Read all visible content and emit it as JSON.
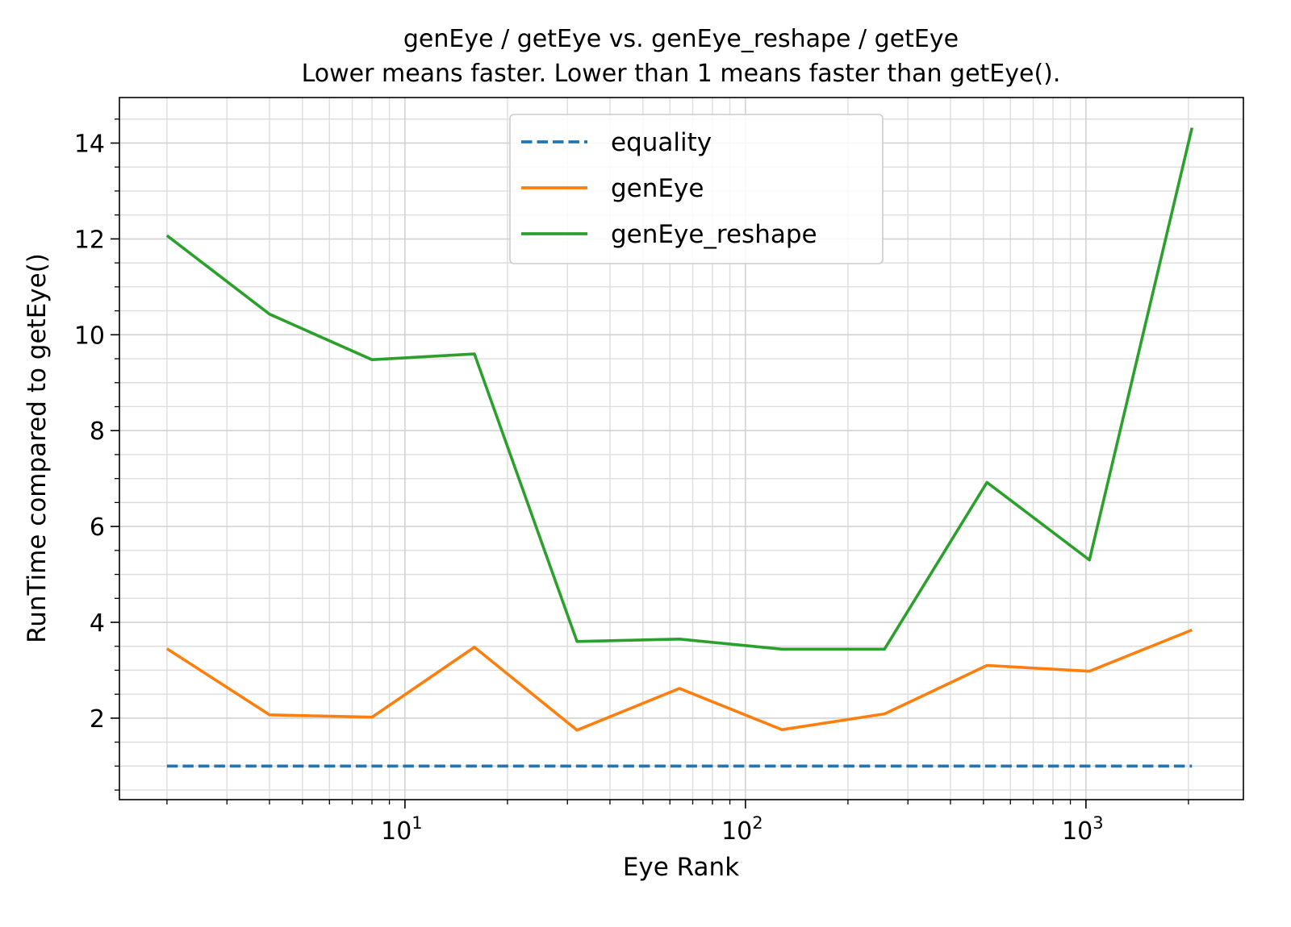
{
  "chart_data": {
    "type": "line",
    "title": "genEye / getEye vs. genEye_reshape / getEye",
    "subtitle": "Lower means faster. Lower than 1 means faster than getEye().",
    "xlabel": "Eye Rank",
    "ylabel": "RunTime compared to getEye()",
    "xscale": "log",
    "xlim": [
      1.45,
      2900
    ],
    "ylim": [
      0.3,
      14.95
    ],
    "x": [
      2,
      4,
      8,
      16,
      32,
      64,
      128,
      256,
      512,
      1024,
      2048
    ],
    "x_ticks": [
      {
        "value": 10,
        "base": "10",
        "exp": "1"
      },
      {
        "value": 100,
        "base": "10",
        "exp": "2"
      },
      {
        "value": 1000,
        "base": "10",
        "exp": "3"
      }
    ],
    "y_ticks": [
      {
        "value": 2,
        "label": "2"
      },
      {
        "value": 4,
        "label": "4"
      },
      {
        "value": 6,
        "label": "6"
      },
      {
        "value": 8,
        "label": "8"
      },
      {
        "value": 10,
        "label": "10"
      },
      {
        "value": 12,
        "label": "12"
      },
      {
        "value": 14,
        "label": "14"
      }
    ],
    "grid": true,
    "legend_position": "top-center",
    "series": [
      {
        "name": "equality",
        "color": "#1f77b4",
        "style": "dashed",
        "values": [
          1,
          1,
          1,
          1,
          1,
          1,
          1,
          1,
          1,
          1,
          1
        ]
      },
      {
        "name": "genEye",
        "color": "#ff7f0e",
        "style": "solid",
        "values": [
          3.45,
          2.07,
          2.02,
          3.48,
          1.75,
          2.62,
          1.76,
          2.09,
          3.1,
          2.98,
          3.84
        ]
      },
      {
        "name": "genEye_reshape",
        "color": "#2ca02c",
        "style": "solid",
        "values": [
          12.07,
          10.43,
          9.48,
          9.6,
          3.6,
          3.65,
          3.44,
          3.44,
          6.92,
          5.3,
          14.32
        ]
      }
    ]
  }
}
